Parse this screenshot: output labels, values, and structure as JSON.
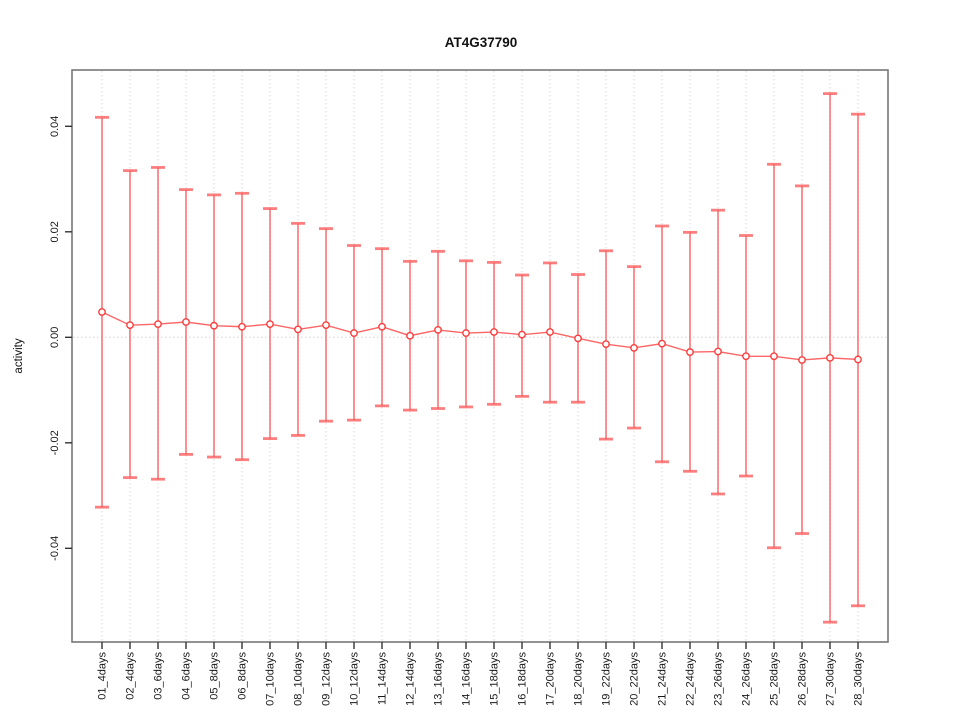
{
  "chart_data": {
    "type": "line",
    "subtype": "points-with-error-bars",
    "title": "AT4G37790",
    "xlabel": "",
    "ylabel": "activity",
    "categories": [
      "01_4days",
      "02_4days",
      "03_6days",
      "04_6days",
      "05_8days",
      "06_8days",
      "07_10days",
      "08_10days",
      "09_12days",
      "10_12days",
      "11_14days",
      "12_14days",
      "13_16days",
      "14_16days",
      "15_18days",
      "16_18days",
      "17_20days",
      "18_20days",
      "19_22days",
      "20_22days",
      "21_24days",
      "22_24days",
      "23_26days",
      "24_26days",
      "25_28days",
      "26_28days",
      "27_30days",
      "28_30days"
    ],
    "series": [
      {
        "name": "activity",
        "means": [
          0.0048,
          0.0023,
          0.0025,
          0.0029,
          0.0022,
          0.002,
          0.0025,
          0.0015,
          0.0023,
          0.0008,
          0.002,
          0.0003,
          0.0014,
          0.0008,
          0.001,
          0.0005,
          0.001,
          -0.0002,
          -0.0013,
          -0.002,
          -0.0012,
          -0.0028,
          -0.0027,
          -0.0036,
          -0.0036,
          -0.0043,
          -0.0039,
          -0.0042
        ],
        "upper": [
          0.0417,
          0.0316,
          0.0322,
          0.028,
          0.027,
          0.0273,
          0.0244,
          0.0216,
          0.0206,
          0.0174,
          0.0168,
          0.0144,
          0.0163,
          0.0145,
          0.0142,
          0.0118,
          0.0141,
          0.0119,
          0.0164,
          0.0134,
          0.0211,
          0.0199,
          0.0241,
          0.0193,
          0.0328,
          0.0287,
          0.0462,
          0.0423
        ],
        "lower": [
          -0.0322,
          -0.0266,
          -0.0269,
          -0.0222,
          -0.0227,
          -0.0232,
          -0.0192,
          -0.0186,
          -0.0159,
          -0.0157,
          -0.013,
          -0.0138,
          -0.0135,
          -0.0132,
          -0.0127,
          -0.0112,
          -0.0123,
          -0.0123,
          -0.0193,
          -0.0172,
          -0.0236,
          -0.0254,
          -0.0297,
          -0.0263,
          -0.0399,
          -0.0372,
          -0.054,
          -0.0509
        ]
      }
    ],
    "yticks": [
      {
        "value": 0.04,
        "label": "0.04"
      },
      {
        "value": 0.02,
        "label": "0.02"
      },
      {
        "value": 0.0,
        "label": "0.00"
      },
      {
        "value": -0.02,
        "label": "-0.02"
      },
      {
        "value": -0.04,
        "label": "-0.04"
      }
    ],
    "ylim": [
      -0.057,
      0.051
    ],
    "grid": {
      "vertical_dotted_per_category": true,
      "horizontal_zero_dotted_line": true
    },
    "legend": "none",
    "colors": {
      "errorbar": "rgba(251,94,94,0.8)",
      "line": "rgba(252,85,85,0.9)",
      "point_stroke": "#ff3b3b",
      "point_fill": "#ffffff",
      "grid": "#dadada",
      "zero_line": "#d0d0d0",
      "axis_box": "#6e6e6e",
      "tick_mark": "#333333",
      "text": "#1a1a1a"
    }
  }
}
